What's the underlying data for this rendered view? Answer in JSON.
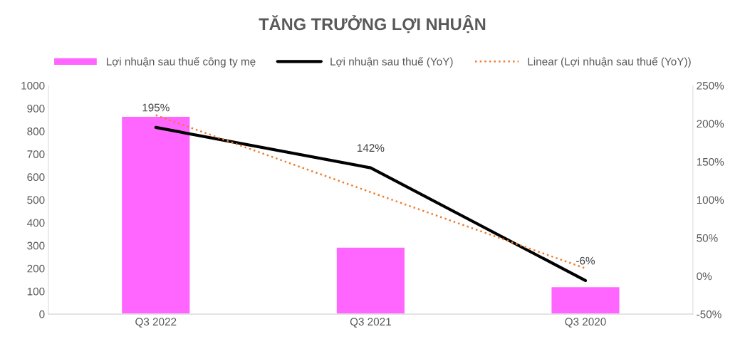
{
  "chart_data": {
    "type": "bar",
    "title": "TĂNG TRƯỞNG LỢI NHUẬN",
    "categories": [
      "Q3 2022",
      "Q3 2021",
      "Q3 2020"
    ],
    "series": [
      {
        "name": "Lợi nhuận sau thuế công ty mẹ",
        "color": "#ff66ff",
        "values": [
          865,
          293,
          120
        ]
      },
      {
        "name": "Lợi nhuận sau thuế (YoY)",
        "type": "line",
        "axis": "y2",
        "color": "#000000",
        "line_style": "solid",
        "values": [
          195,
          142,
          -6
        ],
        "value_labels": [
          "195%",
          "142%",
          "-6%"
        ]
      },
      {
        "name": "Linear (Lợi nhuận sau thuế (YoY))",
        "type": "line",
        "axis": "y2",
        "color": "#ed7d31",
        "line_style": "dotted",
        "values": [
          211,
          110,
          10
        ]
      }
    ],
    "ylim": [
      0,
      1000
    ],
    "yticks": [
      0,
      100,
      200,
      300,
      400,
      500,
      600,
      700,
      800,
      900,
      1000
    ],
    "y2lim": [
      -50,
      250
    ],
    "y2ticks": [
      {
        "value": -50,
        "label": "-50%"
      },
      {
        "value": 0,
        "label": "0%"
      },
      {
        "value": 50,
        "label": "50%"
      },
      {
        "value": 100,
        "label": "100%"
      },
      {
        "value": 150,
        "label": "150%"
      },
      {
        "value": 200,
        "label": "200%"
      },
      {
        "value": 250,
        "label": "250%"
      }
    ],
    "grid": false,
    "legend": "top",
    "marker": "none"
  }
}
